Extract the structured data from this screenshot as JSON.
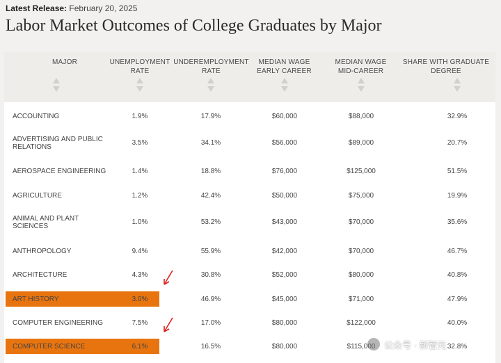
{
  "release": {
    "label": "Latest Release:",
    "date": "February 20, 2025"
  },
  "title": "Labor Market Outcomes of College Graduates by Major",
  "columns": [
    {
      "line1": "MAJOR",
      "line2": ""
    },
    {
      "line1": "UNEMPLOYMENT",
      "line2": "RATE"
    },
    {
      "line1": "UNDEREMPLOYMENT",
      "line2": "RATE"
    },
    {
      "line1": "MEDIAN WAGE",
      "line2": "EARLY CAREER"
    },
    {
      "line1": "MEDIAN WAGE",
      "line2": "MID-CAREER"
    },
    {
      "line1": "SHARE WITH GRADUATE",
      "line2": "DEGREE"
    }
  ],
  "rows": [
    {
      "major": "ACCOUNTING",
      "major2": "",
      "unemp": "1.9%",
      "underemp": "17.9%",
      "early": "$60,000",
      "mid": "$88,000",
      "grad": "32.9%",
      "highlight": false
    },
    {
      "major": "ADVERTISING AND PUBLIC",
      "major2": "RELATIONS",
      "unemp": "3.5%",
      "underemp": "34.1%",
      "early": "$56,000",
      "mid": "$89,000",
      "grad": "20.7%",
      "highlight": false
    },
    {
      "major": "AEROSPACE ENGINEERING",
      "major2": "",
      "unemp": "1.4%",
      "underemp": "18.8%",
      "early": "$76,000",
      "mid": "$125,000",
      "grad": "51.5%",
      "highlight": false
    },
    {
      "major": "AGRICULTURE",
      "major2": "",
      "unemp": "1.2%",
      "underemp": "42.4%",
      "early": "$50,000",
      "mid": "$75,000",
      "grad": "19.9%",
      "highlight": false
    },
    {
      "major": "ANIMAL AND PLANT",
      "major2": "SCIENCES",
      "unemp": "1.0%",
      "underemp": "53.2%",
      "early": "$43,000",
      "mid": "$70,000",
      "grad": "35.6%",
      "highlight": false
    },
    {
      "major": "ANTHROPOLOGY",
      "major2": "",
      "unemp": "9.4%",
      "underemp": "55.9%",
      "early": "$42,000",
      "mid": "$70,000",
      "grad": "46.7%",
      "highlight": false
    },
    {
      "major": "ARCHITECTURE",
      "major2": "",
      "unemp": "4.3%",
      "underemp": "30.8%",
      "early": "$52,000",
      "mid": "$80,000",
      "grad": "40.8%",
      "highlight": false
    },
    {
      "major": "ART HISTORY",
      "major2": "",
      "unemp": "3.0%",
      "underemp": "46.9%",
      "early": "$45,000",
      "mid": "$71,000",
      "grad": "47.9%",
      "highlight": true
    },
    {
      "major": "COMPUTER ENGINEERING",
      "major2": "",
      "unemp": "7.5%",
      "underemp": "17.0%",
      "early": "$80,000",
      "mid": "$122,000",
      "grad": "40.0%",
      "highlight": false
    },
    {
      "major": "COMPUTER SCIENCE",
      "major2": "",
      "unemp": "6.1%",
      "underemp": "16.5%",
      "early": "$80,000",
      "mid": "$115,000",
      "grad": "32.8%",
      "highlight": true
    }
  ],
  "colors": {
    "highlight": "#e8740f",
    "arrow": "#e02020",
    "header_bg": "#efede9"
  },
  "watermark": "公众号 · 新智元"
}
